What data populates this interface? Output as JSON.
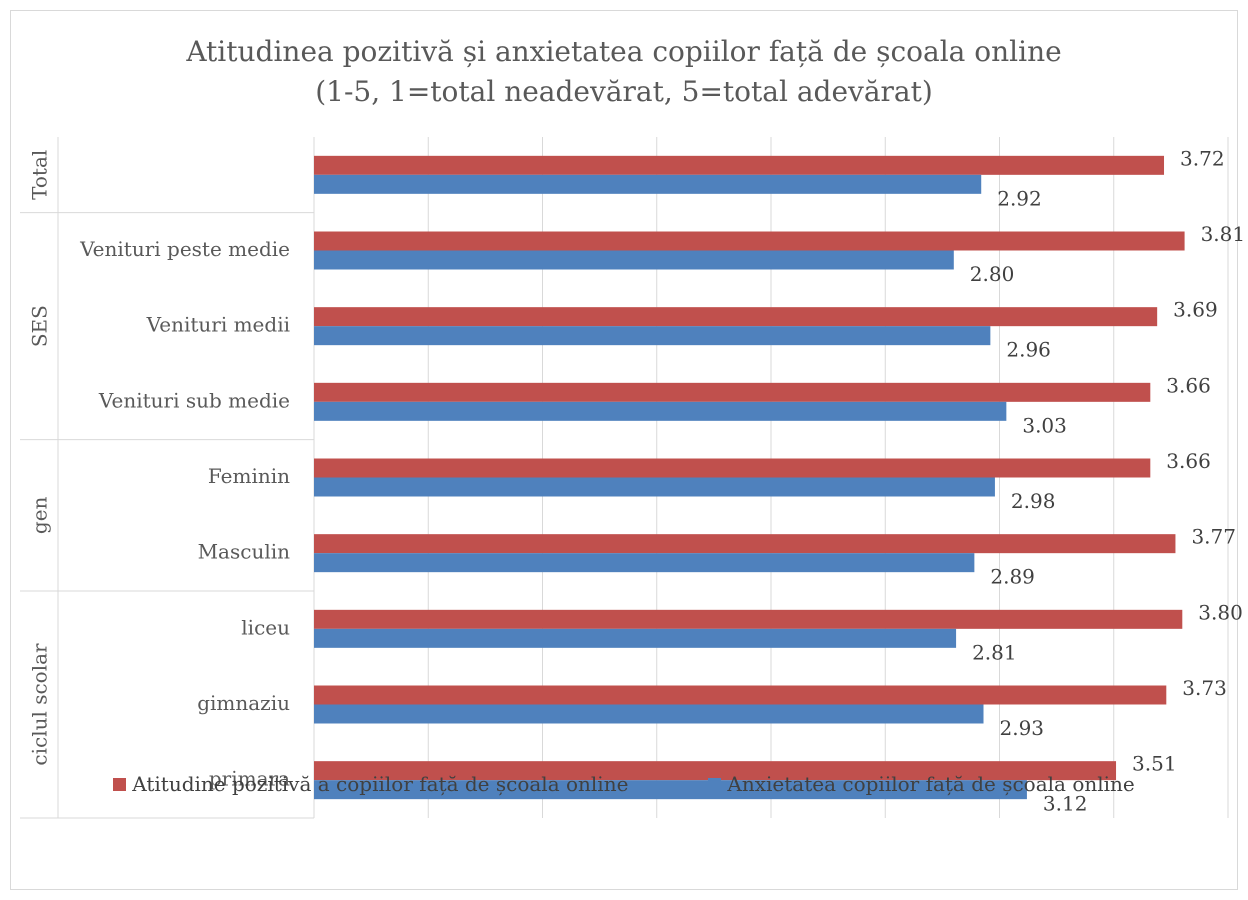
{
  "chart_data": {
    "type": "bar",
    "orientation": "horizontal",
    "title": "Atitudinea pozitivă și anxietatea copiilor față de școala online",
    "subtitle": "(1-5, 1=total neadevărat, 5=total adevărat)",
    "groups": [
      {
        "name": "Total",
        "categories": [
          ""
        ]
      },
      {
        "name": "SES",
        "categories": [
          "Venituri peste medie",
          "Venituri medii",
          "Venituri sub medie"
        ]
      },
      {
        "name": "gen",
        "categories": [
          "Feminin",
          "Masculin"
        ]
      },
      {
        "name": "ciclul scolar",
        "categories": [
          "liceu",
          "gimnaziu",
          "primara"
        ]
      }
    ],
    "series": [
      {
        "name": "Atitudine pozitivă a copiilor față de școala online",
        "color": "#c0504d",
        "values": [
          3.72,
          3.81,
          3.69,
          3.66,
          3.66,
          3.77,
          3.8,
          3.73,
          3.51
        ]
      },
      {
        "name": "Anxietatea copiilor față de școala online",
        "color": "#4f81bd",
        "values": [
          2.92,
          2.8,
          2.96,
          3.03,
          2.98,
          2.89,
          2.81,
          2.93,
          3.12
        ]
      }
    ],
    "value_format": "0.00",
    "xlim": [
      0,
      4
    ],
    "grid": true,
    "legend_position": "bottom"
  }
}
